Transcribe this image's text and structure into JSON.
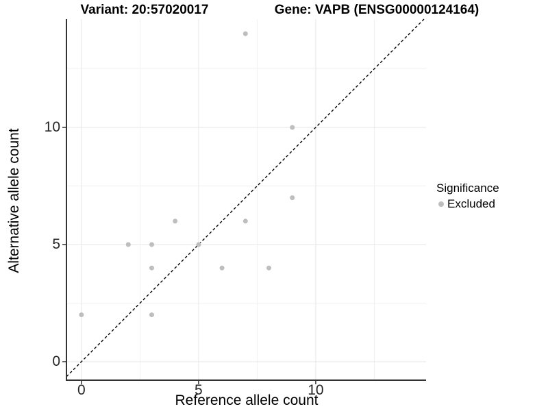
{
  "titles": {
    "left": "Variant: 20:57020017",
    "right": "Gene: VAPB (ENSG00000124164)"
  },
  "legend": {
    "title": "Significance",
    "items": [
      {
        "label": "Excluded",
        "color": "#bebebe"
      }
    ]
  },
  "colors": {
    "point": "#bebebe",
    "grid_major": "#e6e6e6",
    "grid_minor": "#f0f0f0",
    "axis_line": "#333333",
    "tick_mark": "#333333",
    "reference_line": "#000000"
  },
  "chart_data": {
    "type": "scatter",
    "title": "Variant: 20:57020017  |  Gene: VAPB (ENSG00000124164)",
    "xlabel": "Reference allele count",
    "ylabel": "Alternative allele count",
    "xlim": [
      -0.64,
      14.71
    ],
    "ylim": [
      -0.79,
      14.62
    ],
    "x_major_ticks": [
      0,
      5,
      10
    ],
    "y_major_ticks": [
      0,
      5,
      10
    ],
    "x_minor_gridlines": [
      2.5,
      7.5,
      12.5
    ],
    "y_minor_gridlines": [
      2.5,
      7.5,
      12.5
    ],
    "grid": "on",
    "legend_position": "right",
    "legend_title": "Significance",
    "series": [
      {
        "name": "Excluded",
        "color": "#bebebe",
        "points": [
          [
            0,
            2
          ],
          [
            2,
            5
          ],
          [
            3,
            2
          ],
          [
            3,
            4
          ],
          [
            3,
            5
          ],
          [
            4,
            6
          ],
          [
            5,
            5
          ],
          [
            6,
            4
          ],
          [
            7,
            6
          ],
          [
            7,
            14
          ],
          [
            8,
            4
          ],
          [
            9,
            7
          ],
          [
            9,
            10
          ]
        ]
      }
    ],
    "reference_line": {
      "type": "identity",
      "style": "dashed",
      "color": "#000000"
    }
  }
}
